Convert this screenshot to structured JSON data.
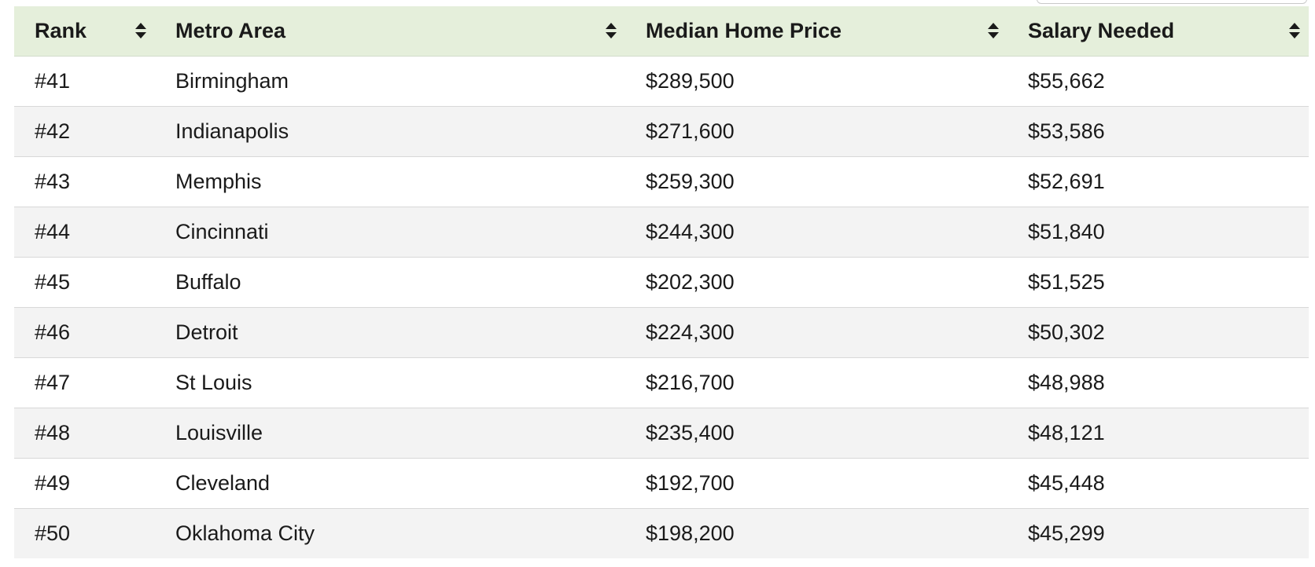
{
  "table": {
    "headers": [
      {
        "label": "Rank"
      },
      {
        "label": "Metro Area"
      },
      {
        "label": "Median Home Price"
      },
      {
        "label": "Salary Needed"
      }
    ],
    "rows": [
      {
        "rank": "#41",
        "metro": "Birmingham",
        "price": "$289,500",
        "salary": "$55,662"
      },
      {
        "rank": "#42",
        "metro": "Indianapolis",
        "price": "$271,600",
        "salary": "$53,586"
      },
      {
        "rank": "#43",
        "metro": "Memphis",
        "price": "$259,300",
        "salary": "$52,691"
      },
      {
        "rank": "#44",
        "metro": "Cincinnati",
        "price": "$244,300",
        "salary": "$51,840"
      },
      {
        "rank": "#45",
        "metro": "Buffalo",
        "price": "$202,300",
        "salary": "$51,525"
      },
      {
        "rank": "#46",
        "metro": "Detroit",
        "price": "$224,300",
        "salary": "$50,302"
      },
      {
        "rank": "#47",
        "metro": "St Louis",
        "price": "$216,700",
        "salary": "$48,988"
      },
      {
        "rank": "#48",
        "metro": "Louisville",
        "price": "$235,400",
        "salary": "$48,121"
      },
      {
        "rank": "#49",
        "metro": "Cleveland",
        "price": "$192,700",
        "salary": "$45,448"
      },
      {
        "rank": "#50",
        "metro": "Oklahoma City",
        "price": "$198,200",
        "salary": "$45,299"
      }
    ]
  },
  "icons": {
    "sort": "sort-updown-icon"
  },
  "colors": {
    "header_bg": "#e5efdb",
    "row_alt_bg": "#f3f3f3",
    "text": "#1a1a1a"
  }
}
